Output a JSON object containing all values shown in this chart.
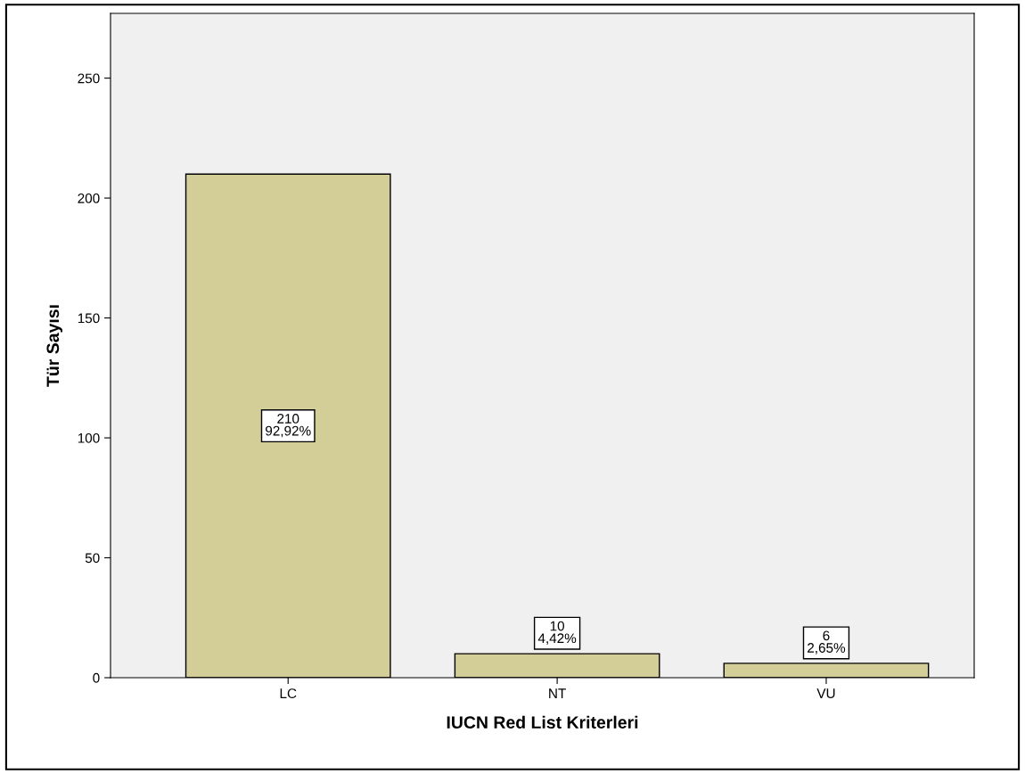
{
  "chart_data": {
    "type": "bar",
    "xlabel": "IUCN Red List Kriterleri",
    "ylabel": "Tür Sayısı",
    "categories": [
      "LC",
      "NT",
      "VU"
    ],
    "values": [
      210,
      10,
      6
    ],
    "value_labels": [
      "210\n92,92%",
      "10\n4,42%",
      "6\n2,65%"
    ],
    "color": "#d3ce97",
    "ylim": [
      0,
      277
    ],
    "yticks": [
      0,
      50,
      100,
      150,
      200,
      250
    ],
    "grid": false,
    "legend": false
  }
}
